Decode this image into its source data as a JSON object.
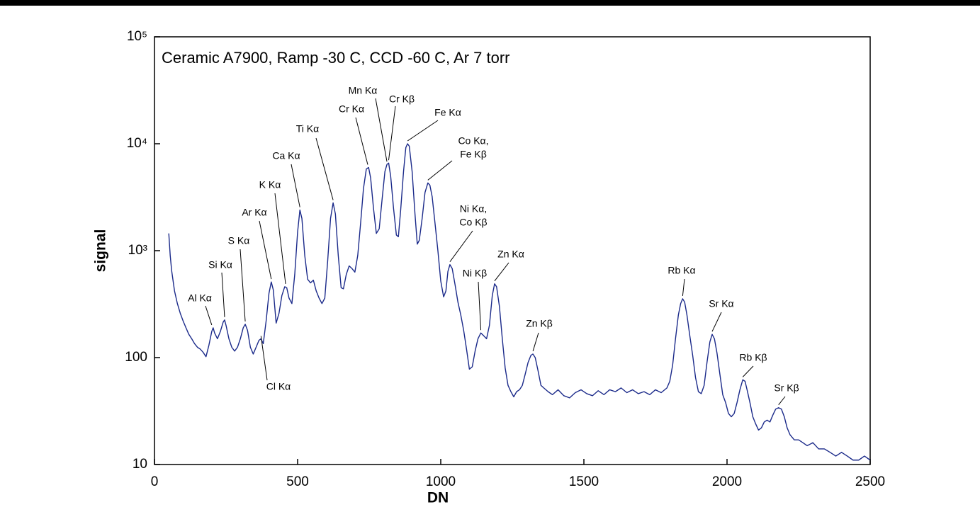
{
  "chart_data": {
    "type": "line",
    "title": "Ceramic A7900, Ramp -30 C, CCD -60 C, Ar 7 torr",
    "x_label": "DN",
    "y_label": "signal",
    "log_y": true,
    "color": "#1b2a8a",
    "xlim": [
      0,
      2500
    ],
    "xticks": [
      0,
      500,
      1000,
      1500,
      2000,
      2500
    ],
    "ylim": [
      10,
      100000
    ],
    "yticks": [
      10,
      100,
      {
        "value": 1000,
        "label": "10³"
      },
      {
        "value": 10000,
        "label": "10⁴"
      },
      {
        "value": 100000,
        "label": "10⁵"
      }
    ],
    "x": [
      50,
      55,
      60,
      70,
      80,
      90,
      100,
      110,
      120,
      130,
      140,
      150,
      160,
      170,
      180,
      190,
      200,
      205,
      210,
      220,
      230,
      240,
      245,
      250,
      260,
      270,
      280,
      290,
      300,
      310,
      317,
      325,
      335,
      345,
      355,
      365,
      372,
      380,
      390,
      400,
      408,
      415,
      425,
      435,
      445,
      455,
      462,
      470,
      480,
      490,
      500,
      508,
      515,
      525,
      535,
      545,
      555,
      565,
      575,
      585,
      595,
      605,
      615,
      624,
      632,
      642,
      652,
      660,
      670,
      680,
      690,
      700,
      710,
      720,
      730,
      740,
      748,
      755,
      765,
      775,
      785,
      795,
      805,
      812,
      818,
      825,
      835,
      845,
      852,
      860,
      870,
      878,
      884,
      890,
      900,
      910,
      918,
      925,
      935,
      945,
      955,
      962,
      970,
      980,
      990,
      1000,
      1010,
      1018,
      1025,
      1032,
      1040,
      1050,
      1060,
      1070,
      1080,
      1090,
      1100,
      1110,
      1120,
      1130,
      1140,
      1150,
      1160,
      1170,
      1180,
      1188,
      1195,
      1205,
      1215,
      1225,
      1235,
      1245,
      1255,
      1265,
      1275,
      1285,
      1295,
      1305,
      1315,
      1322,
      1330,
      1340,
      1350,
      1360,
      1375,
      1390,
      1410,
      1430,
      1450,
      1470,
      1490,
      1510,
      1530,
      1550,
      1570,
      1590,
      1610,
      1630,
      1650,
      1670,
      1690,
      1710,
      1730,
      1750,
      1770,
      1790,
      1800,
      1810,
      1820,
      1830,
      1838,
      1845,
      1852,
      1860,
      1870,
      1880,
      1890,
      1900,
      1910,
      1920,
      1930,
      1940,
      1948,
      1956,
      1965,
      1975,
      1985,
      1995,
      2005,
      2015,
      2025,
      2035,
      2045,
      2055,
      2063,
      2070,
      2080,
      2090,
      2100,
      2110,
      2120,
      2130,
      2140,
      2150,
      2160,
      2170,
      2180,
      2190,
      2200,
      2210,
      2220,
      2235,
      2250,
      2265,
      2280,
      2300,
      2320,
      2340,
      2360,
      2380,
      2400,
      2420,
      2440,
      2460,
      2480,
      2500
    ],
    "values": [
      1450,
      900,
      650,
      420,
      320,
      260,
      220,
      190,
      165,
      150,
      135,
      125,
      120,
      112,
      102,
      130,
      175,
      190,
      170,
      150,
      175,
      215,
      225,
      200,
      150,
      125,
      115,
      125,
      150,
      190,
      205,
      180,
      125,
      108,
      125,
      145,
      150,
      135,
      220,
      400,
      510,
      430,
      210,
      260,
      380,
      460,
      450,
      360,
      320,
      600,
      1500,
      2400,
      2000,
      900,
      540,
      500,
      530,
      420,
      360,
      320,
      360,
      800,
      2000,
      2800,
      2200,
      900,
      450,
      440,
      600,
      720,
      680,
      630,
      900,
      1800,
      3800,
      5800,
      6000,
      4800,
      2500,
      1450,
      1600,
      3000,
      5500,
      6400,
      6600,
      5000,
      2500,
      1400,
      1350,
      2400,
      5500,
      9200,
      10000,
      9500,
      5500,
      2200,
      1150,
      1250,
      2000,
      3500,
      4300,
      4100,
      3200,
      1800,
      1000,
      520,
      370,
      420,
      640,
      740,
      680,
      480,
      330,
      250,
      180,
      120,
      78,
      82,
      115,
      150,
      170,
      160,
      150,
      200,
      380,
      490,
      460,
      300,
      150,
      80,
      55,
      48,
      43,
      48,
      50,
      55,
      70,
      90,
      105,
      108,
      100,
      75,
      55,
      52,
      48,
      45,
      50,
      44,
      42,
      47,
      50,
      46,
      44,
      49,
      45,
      50,
      48,
      52,
      47,
      50,
      46,
      48,
      45,
      50,
      47,
      52,
      60,
      85,
      150,
      250,
      320,
      355,
      330,
      250,
      160,
      105,
      65,
      48,
      46,
      55,
      90,
      140,
      165,
      150,
      110,
      70,
      45,
      38,
      30,
      28,
      30,
      38,
      50,
      62,
      60,
      50,
      38,
      28,
      24,
      21,
      22,
      25,
      26,
      25,
      29,
      33,
      34,
      33,
      28,
      22,
      19,
      17,
      17,
      16,
      15,
      16,
      14,
      14,
      13,
      12,
      13,
      12,
      11,
      11,
      12,
      11
    ],
    "annotations": [
      {
        "lines": [
          "Al Kα"
        ],
        "x": 200,
        "y": 190
      },
      {
        "lines": [
          "Si Kα"
        ],
        "x": 245,
        "y": 225
      },
      {
        "lines": [
          "S Kα"
        ],
        "x": 317,
        "y": 205
      },
      {
        "lines": [
          "Cl Kα"
        ],
        "x": 372,
        "y": 150
      },
      {
        "lines": [
          "Ar Kα"
        ],
        "x": 408,
        "y": 510
      },
      {
        "lines": [
          "K Kα"
        ],
        "x": 458,
        "y": 460
      },
      {
        "lines": [
          "Ca Kα"
        ],
        "x": 508,
        "y": 2400
      },
      {
        "lines": [
          "Ti Kα"
        ],
        "x": 624,
        "y": 2800
      },
      {
        "lines": [
          "Cr Kα"
        ],
        "x": 745,
        "y": 6000
      },
      {
        "lines": [
          "Mn Kα"
        ],
        "x": 812,
        "y": 6400
      },
      {
        "lines": [
          "Cr Kβ"
        ],
        "x": 818,
        "y": 6600
      },
      {
        "lines": [
          "Fe Kα"
        ],
        "x": 884,
        "y": 10000
      },
      {
        "lines": [
          "Co Kα,",
          "Fe Kβ"
        ],
        "x": 955,
        "y": 4300
      },
      {
        "lines": [
          "Ni Kα,",
          "Co Kβ"
        ],
        "x": 1032,
        "y": 740
      },
      {
        "lines": [
          "Ni Kβ"
        ],
        "x": 1140,
        "y": 170
      },
      {
        "lines": [
          "Zn Kα"
        ],
        "x": 1188,
        "y": 490
      },
      {
        "lines": [
          "Zn Kβ"
        ],
        "x": 1322,
        "y": 108
      },
      {
        "lines": [
          "Rb Kα"
        ],
        "x": 1845,
        "y": 355
      },
      {
        "lines": [
          "Sr Kα"
        ],
        "x": 1948,
        "y": 165
      },
      {
        "lines": [
          "Rb Kβ"
        ],
        "x": 2055,
        "y": 62
      },
      {
        "lines": [
          "Sr Kβ"
        ],
        "x": 2180,
        "y": 34
      }
    ]
  }
}
